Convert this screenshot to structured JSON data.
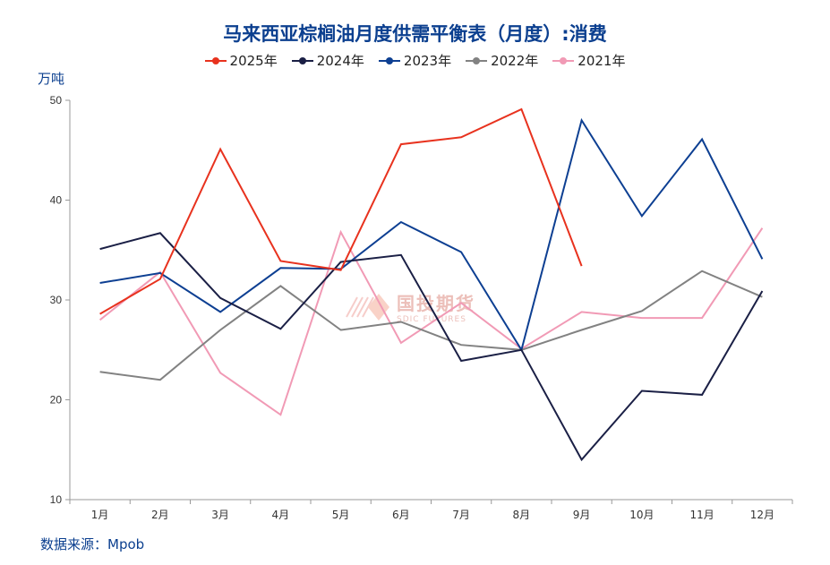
{
  "chart_data": {
    "type": "line",
    "title": "马来西亚棕榈油月度供需平衡表（月度）:消费",
    "ylabel": "万吨",
    "source": "数据来源：Mpob",
    "watermark": {
      "cn": "国投期货",
      "en": "SDIC FUTURES"
    },
    "categories": [
      "1月",
      "2月",
      "3月",
      "4月",
      "5月",
      "6月",
      "7月",
      "8月",
      "9月",
      "10月",
      "11月",
      "12月"
    ],
    "ylim": [
      10,
      50
    ],
    "yticks": [
      10,
      20,
      30,
      40,
      50
    ],
    "grid": false,
    "legend_position": "top-center",
    "series": [
      {
        "name": "2025年",
        "color": "#e8321e",
        "values": [
          28.6,
          32.1,
          45.1,
          33.9,
          33.0,
          45.6,
          46.3,
          49.1,
          33.4,
          null,
          null,
          null
        ]
      },
      {
        "name": "2024年",
        "color": "#1a1f45",
        "values": [
          35.1,
          36.7,
          30.2,
          27.1,
          33.8,
          34.5,
          23.9,
          25.0,
          14.0,
          20.9,
          20.5,
          30.9
        ]
      },
      {
        "name": "2023年",
        "color": "#0d3f92",
        "values": [
          31.7,
          32.7,
          28.8,
          33.2,
          33.1,
          37.8,
          34.8,
          25.0,
          48.0,
          38.4,
          46.1,
          34.1
        ]
      },
      {
        "name": "2022年",
        "color": "#828282",
        "values": [
          22.8,
          22.0,
          27.0,
          31.4,
          27.0,
          27.8,
          25.5,
          25.0,
          27.0,
          28.9,
          32.9,
          30.3
        ]
      },
      {
        "name": "2021年",
        "color": "#f19ab5",
        "values": [
          28.0,
          32.8,
          22.7,
          18.5,
          36.8,
          25.7,
          29.7,
          25.1,
          28.8,
          28.2,
          28.2,
          37.2
        ]
      }
    ]
  }
}
